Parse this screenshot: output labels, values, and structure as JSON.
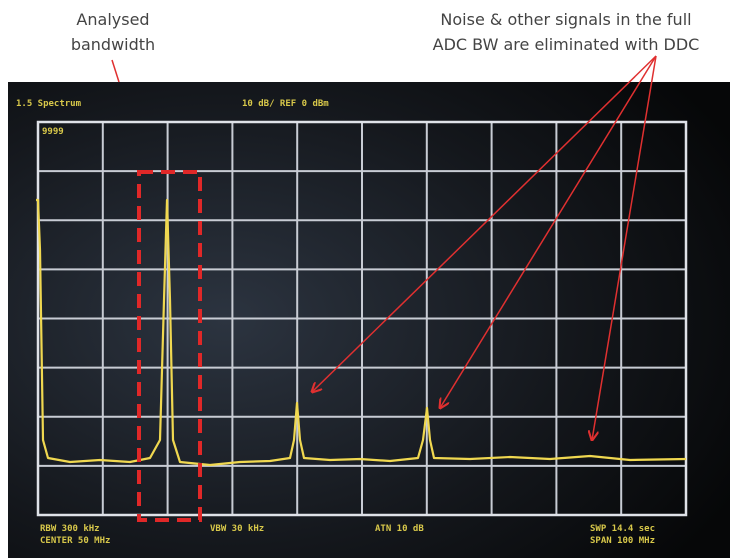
{
  "annotations": {
    "bandwidth_label": [
      "Analysed",
      "bandwidth"
    ],
    "noise_label": [
      "Noise & other signals in the full",
      "ADC BW are eliminated with DDC"
    ]
  },
  "screen": {
    "top_left": "1.5  Spectrum",
    "top_center": "10 dB/ REF 0 dBm",
    "marker": "9999",
    "bottom": [
      [
        "RBW 300 kHz",
        "CENTER  50 MHz"
      ],
      [
        "VBW 30 kHz"
      ],
      [
        "ATN  10 dB"
      ],
      [
        "SWP 14.4 sec",
        "SPAN  100 MHz"
      ]
    ]
  }
}
